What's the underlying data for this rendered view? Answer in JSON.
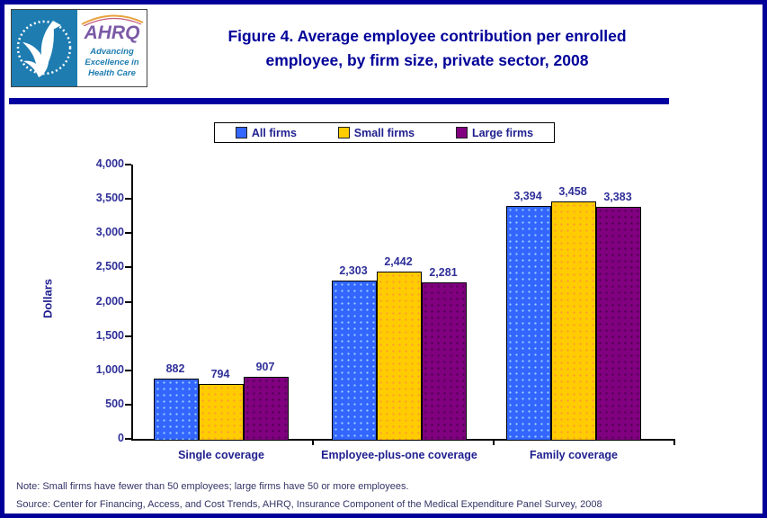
{
  "header": {
    "logo": {
      "hhs_seal_name": "hhs-eagle-seal",
      "ahrq_acronym": "AHRQ",
      "ahrq_tagline": "Advancing Excellence in Health Care"
    },
    "title_line1": "Figure 4. Average employee contribution per enrolled",
    "title_line2": "employee, by firm size, private sector, 2008"
  },
  "chart_data": {
    "type": "bar",
    "title": "Figure 4. Average employee contribution per enrolled employee, by firm size, private sector, 2008",
    "xlabel": "",
    "ylabel": "Dollars",
    "ylim": [
      0,
      4000
    ],
    "ytick_step": 500,
    "ytick_labels": [
      "0",
      "500",
      "1,000",
      "1,500",
      "2,000",
      "2,500",
      "3,000",
      "3,500",
      "4,000"
    ],
    "categories": [
      "Single coverage",
      "Employee-plus-one coverage",
      "Family coverage"
    ],
    "series": [
      {
        "name": "All firms",
        "values": [
          882,
          2303,
          3394
        ],
        "labels": [
          "882",
          "2,303",
          "3,394"
        ],
        "color": "#3366FF",
        "dot_color": "#99CCFF"
      },
      {
        "name": "Small firms",
        "values": [
          794,
          2442,
          3458
        ],
        "labels": [
          "794",
          "2,442",
          "3,458"
        ],
        "color": "#FFCC00",
        "dot_color": "#FF9933"
      },
      {
        "name": "Large firms",
        "values": [
          907,
          2281,
          3383
        ],
        "labels": [
          "907",
          "2,281",
          "3,383"
        ],
        "color": "#800080",
        "dot_color": "#4D004D"
      }
    ],
    "legend_position": "top",
    "grid": false
  },
  "note": "Note: Small firms have fewer than 50 employees; large firms have 50 or more employees.",
  "source": "Source: Center for Financing, Access, and Cost Trends, AHRQ, Insurance Component of the Medical Expenditure Panel Survey, 2008",
  "colors": {
    "page_border": "#000099",
    "divider": "#0000A0",
    "title_text": "#000099",
    "chart_text": "#2F2F99",
    "note_text": "#333366",
    "hhs_blue": "#1E7CB0",
    "ahrq_purple": "#7B5AA6",
    "axis": "#000000"
  }
}
